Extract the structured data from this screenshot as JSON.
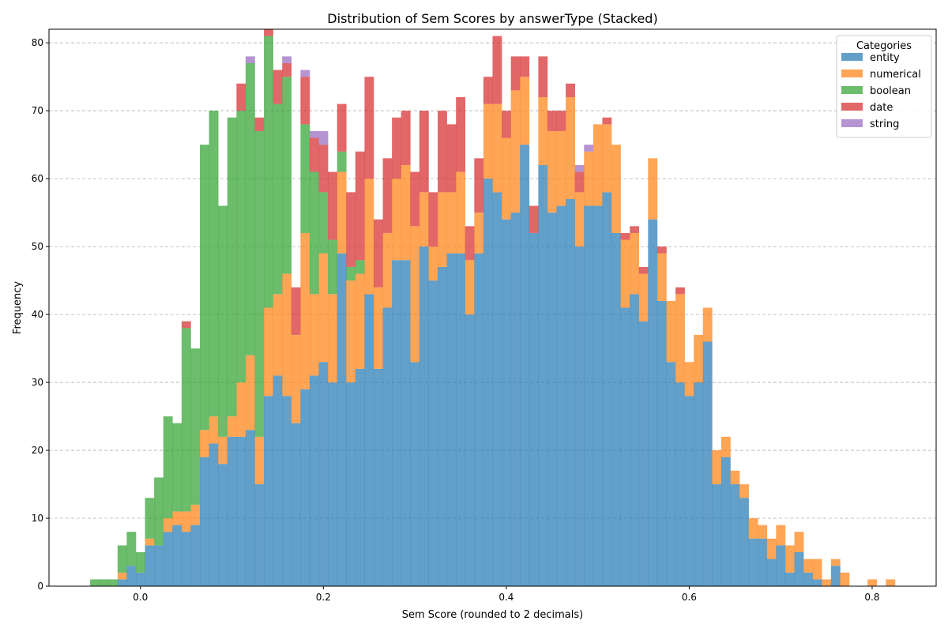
{
  "chart_data": {
    "type": "bar",
    "title": "Distribution of Sem Scores by answerType (Stacked)",
    "xlabel": "Sem Score (rounded to 2 decimals)",
    "ylabel": "Frequency",
    "xlim": [
      -0.1,
      0.87
    ],
    "ylim": [
      0,
      82
    ],
    "xticks": [
      0.0,
      0.2,
      0.4,
      0.6,
      0.8
    ],
    "xtick_labels": [
      "0.0",
      "0.2",
      "0.4",
      "0.6",
      "0.8"
    ],
    "yticks": [
      0,
      10,
      20,
      30,
      40,
      50,
      60,
      70,
      80
    ],
    "ytick_labels": [
      "0",
      "10",
      "20",
      "30",
      "40",
      "50",
      "60",
      "70",
      "80"
    ],
    "grid": "y-dashed",
    "legend": {
      "title": "Categories",
      "placement": "top-right"
    },
    "bin_width": 0.01,
    "x": [
      -0.05,
      -0.04,
      -0.03,
      -0.02,
      -0.01,
      0.0,
      0.01,
      0.02,
      0.03,
      0.04,
      0.05,
      0.06,
      0.07,
      0.08,
      0.09,
      0.1,
      0.11,
      0.12,
      0.13,
      0.14,
      0.15,
      0.16,
      0.17,
      0.18,
      0.19,
      0.2,
      0.21,
      0.22,
      0.23,
      0.24,
      0.25,
      0.26,
      0.27,
      0.28,
      0.29,
      0.3,
      0.31,
      0.32,
      0.33,
      0.34,
      0.35,
      0.36,
      0.37,
      0.38,
      0.39,
      0.4,
      0.41,
      0.42,
      0.43,
      0.44,
      0.45,
      0.46,
      0.47,
      0.48,
      0.49,
      0.5,
      0.51,
      0.52,
      0.53,
      0.54,
      0.55,
      0.56,
      0.57,
      0.58,
      0.59,
      0.6,
      0.61,
      0.62,
      0.63,
      0.64,
      0.65,
      0.66,
      0.67,
      0.68,
      0.69,
      0.7,
      0.71,
      0.72,
      0.73,
      0.74,
      0.75,
      0.76,
      0.77,
      0.78,
      0.79,
      0.8,
      0.81,
      0.82
    ],
    "series": [
      {
        "name": "entity",
        "color": "#1f77b4",
        "values": [
          0,
          0,
          0,
          1,
          3,
          2,
          6,
          6,
          8,
          9,
          8,
          9,
          19,
          21,
          18,
          22,
          22,
          23,
          15,
          28,
          31,
          28,
          24,
          29,
          31,
          33,
          30,
          49,
          30,
          32,
          43,
          32,
          41,
          48,
          48,
          33,
          50,
          45,
          47,
          49,
          49,
          40,
          49,
          60,
          58,
          54,
          55,
          65,
          52,
          62,
          55,
          56,
          57,
          50,
          56,
          56,
          58,
          52,
          41,
          43,
          39,
          54,
          42,
          33,
          30,
          28,
          30,
          36,
          15,
          19,
          15,
          13,
          7,
          7,
          4,
          6,
          2,
          5,
          2,
          1,
          0,
          3,
          0,
          0,
          0,
          0,
          0,
          0
        ]
      },
      {
        "name": "numerical",
        "color": "#ff7f0e",
        "values": [
          0,
          0,
          0,
          1,
          0,
          0,
          1,
          0,
          2,
          2,
          3,
          3,
          4,
          4,
          4,
          3,
          8,
          11,
          7,
          13,
          12,
          18,
          13,
          23,
          12,
          16,
          13,
          12,
          15,
          14,
          17,
          12,
          11,
          12,
          14,
          20,
          8,
          5,
          11,
          9,
          12,
          8,
          6,
          11,
          13,
          12,
          18,
          10,
          0,
          10,
          12,
          11,
          15,
          8,
          8,
          12,
          10,
          13,
          10,
          9,
          7,
          9,
          7,
          9,
          13,
          5,
          7,
          5,
          5,
          3,
          2,
          2,
          3,
          2,
          3,
          3,
          4,
          3,
          2,
          3,
          1,
          1,
          2,
          0,
          0,
          1,
          0,
          1
        ]
      },
      {
        "name": "boolean",
        "color": "#2ca02c",
        "values": [
          1,
          1,
          1,
          4,
          5,
          3,
          6,
          10,
          15,
          13,
          27,
          23,
          42,
          45,
          34,
          44,
          40,
          43,
          45,
          40,
          28,
          29,
          0,
          16,
          18,
          9,
          8,
          3,
          2,
          2,
          0,
          0,
          0,
          0,
          0,
          0,
          0,
          0,
          0,
          0,
          0,
          0,
          0,
          0,
          0,
          0,
          0,
          0,
          0,
          0,
          0,
          0,
          0,
          0,
          0,
          0,
          0,
          0,
          0,
          0,
          0,
          0,
          0,
          0,
          0,
          0,
          0,
          0,
          0,
          0,
          0,
          0,
          0,
          0,
          0,
          0,
          0,
          0,
          0,
          0,
          0,
          0,
          0,
          0,
          0,
          0,
          0,
          0
        ]
      },
      {
        "name": "date",
        "color": "#d62728",
        "values": [
          0,
          0,
          0,
          0,
          0,
          0,
          0,
          0,
          0,
          0,
          1,
          0,
          0,
          0,
          0,
          0,
          4,
          0,
          2,
          1,
          5,
          2,
          7,
          7,
          5,
          7,
          10,
          7,
          11,
          16,
          15,
          10,
          11,
          9,
          8,
          8,
          12,
          8,
          12,
          10,
          11,
          5,
          8,
          4,
          10,
          4,
          5,
          3,
          4,
          6,
          3,
          3,
          2,
          3,
          0,
          0,
          1,
          0,
          1,
          1,
          1,
          0,
          1,
          0,
          1,
          0,
          0,
          0,
          0,
          0,
          0,
          0,
          0,
          0,
          0,
          0,
          0,
          0,
          0,
          0,
          0,
          0,
          0,
          0,
          0,
          0,
          0,
          0
        ]
      },
      {
        "name": "string",
        "color": "#9467bd",
        "values": [
          0,
          0,
          0,
          0,
          0,
          0,
          0,
          0,
          0,
          0,
          0,
          0,
          0,
          0,
          0,
          0,
          0,
          1,
          0,
          0,
          0,
          1,
          0,
          1,
          1,
          2,
          0,
          0,
          0,
          0,
          0,
          0,
          0,
          0,
          0,
          0,
          0,
          0,
          0,
          0,
          0,
          0,
          0,
          0,
          0,
          0,
          0,
          0,
          0,
          0,
          0,
          0,
          0,
          1,
          1,
          0,
          0,
          0,
          0,
          0,
          0,
          0,
          0,
          0,
          0,
          0,
          0,
          0,
          0,
          0,
          0,
          0,
          0,
          0,
          0,
          0,
          0,
          0,
          0,
          0,
          0,
          0,
          0,
          0,
          0,
          0,
          0,
          0
        ]
      }
    ]
  }
}
